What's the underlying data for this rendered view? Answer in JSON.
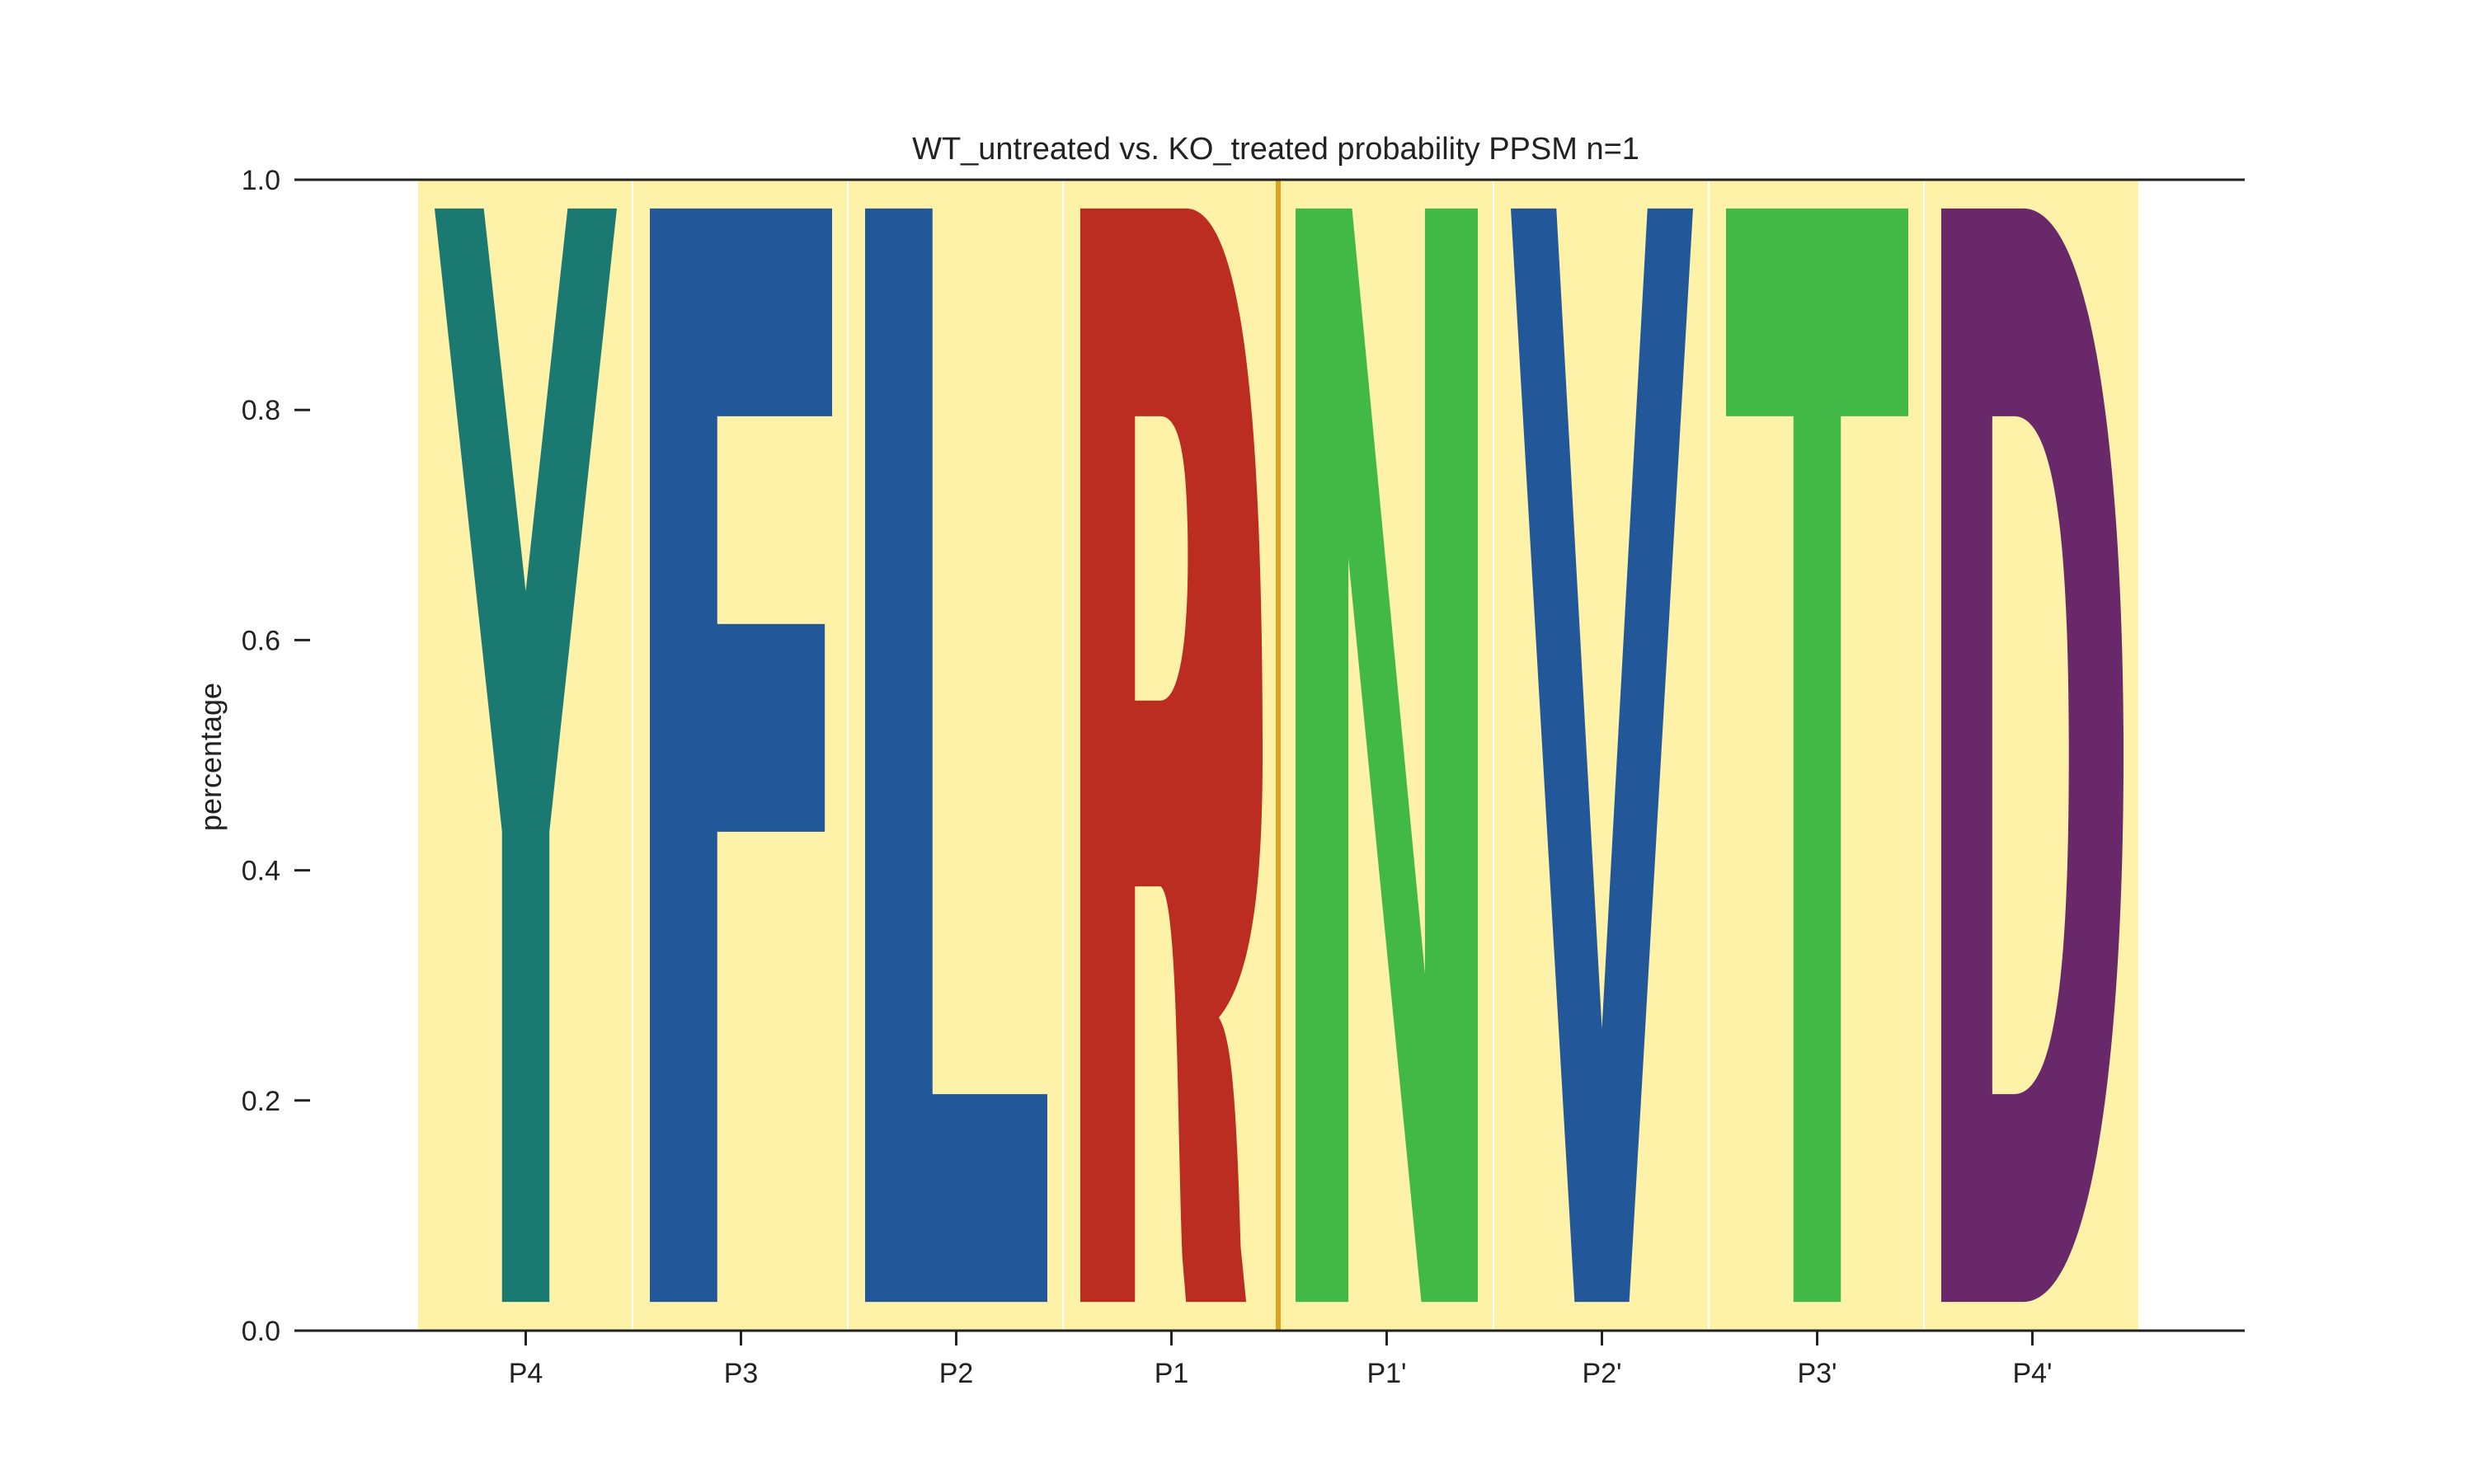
{
  "chart_data": {
    "type": "sequence_logo",
    "title": "WT_untreated vs. KO_treated probability PPSM n=1",
    "xlabel": "",
    "ylabel": "percentage",
    "ylim": [
      0,
      1.0
    ],
    "yticks": [
      "0.0",
      "0.2",
      "0.4",
      "0.6",
      "0.8",
      "1.0"
    ],
    "positions": [
      "P4",
      "P3",
      "P2",
      "P1",
      "P1'",
      "P2'",
      "P3'",
      "P4'"
    ],
    "residues": [
      {
        "position": "P4",
        "letter": "Y",
        "value": 1.0,
        "color": "#1a7a72"
      },
      {
        "position": "P3",
        "letter": "F",
        "value": 1.0,
        "color": "#22589a"
      },
      {
        "position": "P2",
        "letter": "L",
        "value": 1.0,
        "color": "#22589a"
      },
      {
        "position": "P1",
        "letter": "R",
        "value": 1.0,
        "color": "#bb2d20"
      },
      {
        "position": "P1'",
        "letter": "N",
        "value": 1.0,
        "color": "#42b946"
      },
      {
        "position": "P2'",
        "letter": "V",
        "value": 1.0,
        "color": "#22589a"
      },
      {
        "position": "P3'",
        "letter": "T",
        "value": 1.0,
        "color": "#42b946"
      },
      {
        "position": "P4'",
        "letter": "D",
        "value": 1.0,
        "color": "#692869"
      }
    ],
    "cleavage_site_between": [
      "P1",
      "P1'"
    ],
    "background_color": "#fef1a8",
    "cleavage_line_color": "#d9a520",
    "grid": false
  }
}
